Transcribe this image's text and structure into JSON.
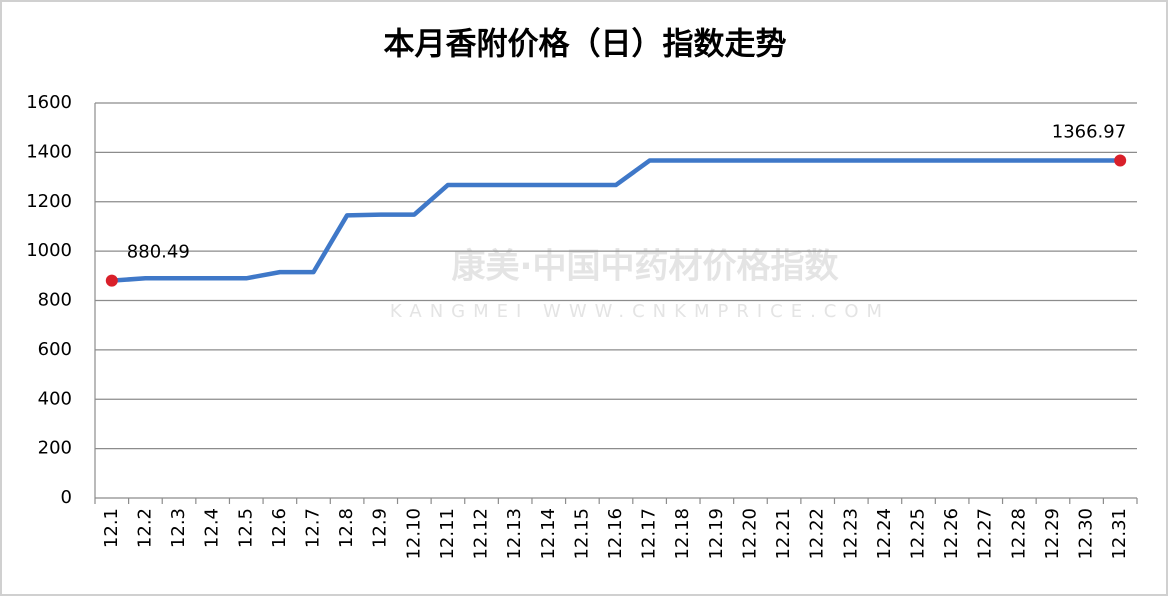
{
  "chart_data": {
    "type": "line",
    "title": "本月香附价格（日）指数走势",
    "watermark": [
      "康美·中国中药材价格指数",
      "KANGMEI WWW.CNKMPRICE.COM"
    ],
    "categories": [
      "12.1",
      "12.2",
      "12.3",
      "12.4",
      "12.5",
      "12.6",
      "12.7",
      "12.8",
      "12.9",
      "12.10",
      "12.11",
      "12.12",
      "12.13",
      "12.14",
      "12.15",
      "12.16",
      "12.17",
      "12.18",
      "12.19",
      "12.20",
      "12.21",
      "12.22",
      "12.23",
      "12.24",
      "12.25",
      "12.26",
      "12.27",
      "12.28",
      "12.29",
      "12.30",
      "12.31"
    ],
    "values": [
      880.49,
      890,
      890,
      890,
      890,
      915,
      915,
      1145,
      1148,
      1148,
      1268,
      1268,
      1268,
      1268,
      1268,
      1268,
      1366.97,
      1366.97,
      1366.97,
      1366.97,
      1366.97,
      1366.97,
      1366.97,
      1366.97,
      1366.97,
      1366.97,
      1366.97,
      1366.97,
      1366.97,
      1366.97,
      1366.97
    ],
    "color": "#3f78c8",
    "marker_color": "#d9202a",
    "ylim": [
      0,
      1600
    ],
    "yticks": [
      0,
      200,
      400,
      600,
      800,
      1000,
      1200,
      1400,
      1600
    ],
    "grid": true
  }
}
